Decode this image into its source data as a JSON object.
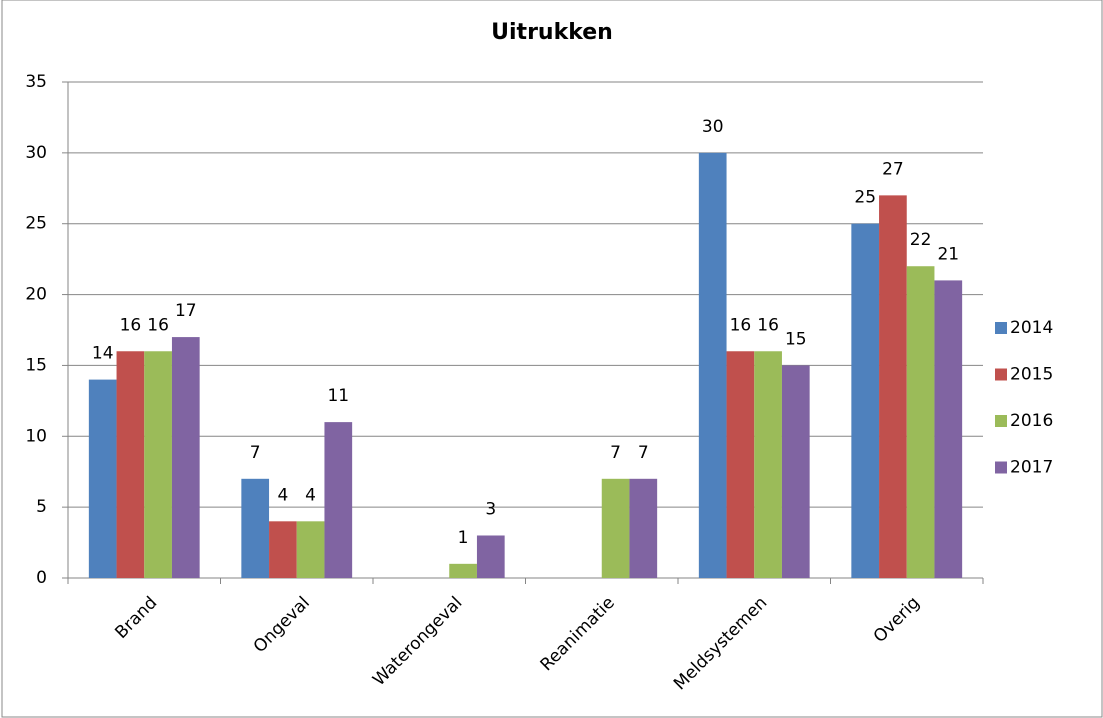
{
  "chart_data": {
    "type": "bar",
    "title": "Uitrukken",
    "categories": [
      "Brand",
      "Ongeval",
      "Waterongeval",
      "Reanimatie",
      "Meldsystemen",
      "Overig"
    ],
    "series": [
      {
        "name": "2014",
        "color": "#4f81bd",
        "values": [
          14,
          7,
          null,
          null,
          30,
          25
        ]
      },
      {
        "name": "2015",
        "color": "#c0504d",
        "values": [
          16,
          4,
          null,
          null,
          16,
          27
        ]
      },
      {
        "name": "2016",
        "color": "#9bbb59",
        "values": [
          16,
          4,
          1,
          7,
          16,
          22
        ]
      },
      {
        "name": "2017",
        "color": "#8064a2",
        "values": [
          17,
          11,
          3,
          7,
          15,
          21
        ]
      }
    ],
    "ylim": [
      0,
      35
    ],
    "yticks": [
      0,
      5,
      10,
      15,
      20,
      25,
      30,
      35
    ],
    "grid": true,
    "legend": "right"
  }
}
